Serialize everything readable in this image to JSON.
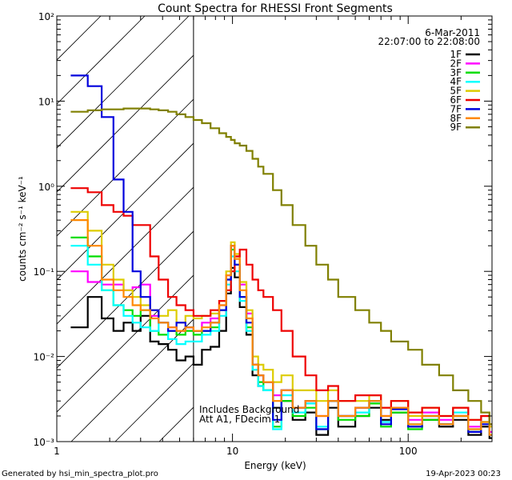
{
  "chart_data": {
    "type": "line",
    "title": "Count Spectra for RHESSI Front Segments",
    "xlabel": "Energy (keV)",
    "ylabel": "counts cm⁻² s⁻¹ keV⁻¹",
    "xscale": "log",
    "yscale": "log",
    "xlim": [
      1,
      300
    ],
    "ylim": [
      0.001,
      100
    ],
    "x_ticks": [
      "1",
      "10",
      "100"
    ],
    "y_ticks": [
      "10⁻³",
      "10⁻²",
      "10⁻¹",
      "10⁰",
      "10¹",
      "10²"
    ],
    "shaded_region": {
      "x_max_kev": 6,
      "style": "diagonal hatch"
    },
    "date": "6-Mar-2011",
    "time_range": "22:07:00 to 22:08:00",
    "annotation_lines": [
      "Includes Background",
      "Att A1, FDecim 1"
    ],
    "series": [
      {
        "name": "1F",
        "color": "#000000",
        "x": [
          1.2,
          1.5,
          1.8,
          2.1,
          2.4,
          2.7,
          3.0,
          3.4,
          3.8,
          4.3,
          4.8,
          5.4,
          6,
          6.7,
          7.5,
          8.4,
          9.2,
          9.8,
          10.3,
          11,
          12,
          13,
          14,
          15,
          17,
          19,
          22,
          26,
          30,
          35,
          40,
          50,
          60,
          70,
          80,
          100,
          120,
          150,
          180,
          220,
          260,
          290
        ],
        "values": [
          0.022,
          0.05,
          0.028,
          0.02,
          0.025,
          0.02,
          0.03,
          0.015,
          0.014,
          0.012,
          0.009,
          0.01,
          0.008,
          0.012,
          0.013,
          0.02,
          0.055,
          0.11,
          0.085,
          0.038,
          0.018,
          0.006,
          0.0045,
          0.004,
          0.0025,
          0.003,
          0.0018,
          0.0022,
          0.0012,
          0.0025,
          0.0015,
          0.002,
          0.0025,
          0.0018,
          0.0022,
          0.0015,
          0.0018,
          0.0015,
          0.0018,
          0.0012,
          0.0015,
          0.0011
        ]
      },
      {
        "name": "2F",
        "color": "#ff00ff",
        "x": [
          1.2,
          1.5,
          1.8,
          2.1,
          2.4,
          2.7,
          3.0,
          3.4,
          3.8,
          4.3,
          4.8,
          5.4,
          6,
          6.7,
          7.5,
          8.4,
          9.2,
          9.8,
          10.3,
          11,
          12,
          13,
          14,
          15,
          17,
          19,
          22,
          26,
          30,
          35,
          40,
          50,
          60,
          70,
          80,
          100,
          120,
          150,
          180,
          220,
          260,
          290
        ],
        "values": [
          0.1,
          0.075,
          0.07,
          0.07,
          0.06,
          0.065,
          0.07,
          0.03,
          0.025,
          0.022,
          0.02,
          0.022,
          0.02,
          0.025,
          0.028,
          0.04,
          0.09,
          0.2,
          0.15,
          0.07,
          0.032,
          0.008,
          0.006,
          0.005,
          0.0035,
          0.004,
          0.0025,
          0.003,
          0.002,
          0.003,
          0.002,
          0.0025,
          0.003,
          0.002,
          0.0025,
          0.0018,
          0.0022,
          0.0018,
          0.0025,
          0.0015,
          0.002,
          0.0013
        ]
      },
      {
        "name": "3F",
        "color": "#00dd00",
        "x": [
          1.2,
          1.5,
          1.8,
          2.1,
          2.4,
          2.7,
          3.0,
          3.4,
          3.8,
          4.3,
          4.8,
          5.4,
          6,
          6.7,
          7.5,
          8.4,
          9.2,
          9.8,
          10.3,
          11,
          12,
          13,
          14,
          15,
          17,
          19,
          22,
          26,
          30,
          35,
          40,
          50,
          60,
          70,
          80,
          100,
          120,
          150,
          180,
          220,
          260,
          290
        ],
        "values": [
          0.25,
          0.15,
          0.06,
          0.04,
          0.035,
          0.03,
          0.035,
          0.02,
          0.018,
          0.02,
          0.018,
          0.02,
          0.018,
          0.02,
          0.022,
          0.035,
          0.08,
          0.18,
          0.12,
          0.05,
          0.022,
          0.007,
          0.005,
          0.004,
          0.0015,
          0.003,
          0.002,
          0.0025,
          0.0014,
          0.003,
          0.0018,
          0.002,
          0.0028,
          0.0015,
          0.0022,
          0.0014,
          0.0018,
          0.0016,
          0.002,
          0.0013,
          0.0017,
          0.0012
        ]
      },
      {
        "name": "4F",
        "color": "#00ffff",
        "x": [
          1.2,
          1.5,
          1.8,
          2.1,
          2.4,
          2.7,
          3.0,
          3.4,
          3.8,
          4.3,
          4.8,
          5.4,
          6,
          6.7,
          7.5,
          8.4,
          9.2,
          9.8,
          10.3,
          11,
          12,
          13,
          14,
          15,
          17,
          19,
          22,
          26,
          30,
          35,
          40,
          50,
          60,
          70,
          80,
          100,
          120,
          150,
          180,
          220,
          260,
          290
        ],
        "values": [
          0.2,
          0.12,
          0.06,
          0.04,
          0.03,
          0.025,
          0.022,
          0.02,
          0.025,
          0.016,
          0.014,
          0.015,
          0.015,
          0.018,
          0.02,
          0.03,
          0.07,
          0.15,
          0.1,
          0.045,
          0.02,
          0.007,
          0.0045,
          0.004,
          0.0014,
          0.0035,
          0.0022,
          0.0028,
          0.0015,
          0.003,
          0.002,
          0.0022,
          0.003,
          0.0017,
          0.0024,
          0.0016,
          0.002,
          0.0016,
          0.0022,
          0.0014,
          0.0017,
          0.0012
        ]
      },
      {
        "name": "5F",
        "color": "#ddcc00",
        "x": [
          1.2,
          1.5,
          1.8,
          2.1,
          2.4,
          2.7,
          3.0,
          3.4,
          3.8,
          4.3,
          4.8,
          5.4,
          6,
          6.7,
          7.5,
          8.4,
          9.2,
          9.8,
          10.3,
          11,
          12,
          13,
          14,
          15,
          17,
          19,
          22,
          26,
          30,
          35,
          40,
          50,
          60,
          70,
          80,
          100,
          120,
          150,
          180,
          220,
          260,
          290
        ],
        "values": [
          0.5,
          0.3,
          0.12,
          0.08,
          0.06,
          0.05,
          0.04,
          0.035,
          0.03,
          0.035,
          0.025,
          0.03,
          0.028,
          0.03,
          0.032,
          0.045,
          0.1,
          0.22,
          0.16,
          0.075,
          0.035,
          0.01,
          0.008,
          0.007,
          0.005,
          0.006,
          0.004,
          0.004,
          0.003,
          0.004,
          0.003,
          0.003,
          0.0035,
          0.0025,
          0.003,
          0.002,
          0.0025,
          0.002,
          0.0025,
          0.0018,
          0.002,
          0.0015
        ]
      },
      {
        "name": "6F",
        "color": "#ee0000",
        "x": [
          1.2,
          1.5,
          1.8,
          2.1,
          2.4,
          2.7,
          3.0,
          3.4,
          3.8,
          4.3,
          4.8,
          5.4,
          6,
          6.7,
          7.5,
          8.4,
          9.2,
          9.8,
          10.3,
          11,
          12,
          13,
          14,
          15,
          17,
          19,
          22,
          26,
          30,
          35,
          40,
          50,
          60,
          70,
          80,
          100,
          120,
          150,
          180,
          220,
          260,
          290
        ],
        "values": [
          0.95,
          0.85,
          0.6,
          0.5,
          0.45,
          0.35,
          0.35,
          0.15,
          0.08,
          0.05,
          0.04,
          0.035,
          0.03,
          0.03,
          0.035,
          0.045,
          0.06,
          0.1,
          0.15,
          0.18,
          0.12,
          0.08,
          0.06,
          0.05,
          0.035,
          0.02,
          0.01,
          0.006,
          0.004,
          0.0045,
          0.003,
          0.0035,
          0.0035,
          0.0025,
          0.003,
          0.0022,
          0.0025,
          0.002,
          0.0025,
          0.0018,
          0.002,
          0.0016
        ]
      },
      {
        "name": "7F",
        "color": "#0000dd",
        "x": [
          1.2,
          1.5,
          1.8,
          2.1,
          2.4,
          2.7,
          3.0,
          3.4,
          3.8,
          4.3,
          4.8,
          5.4,
          6,
          6.7,
          7.5,
          8.4,
          9.2,
          9.8,
          10.3,
          11,
          12,
          13,
          14,
          15,
          17,
          19,
          22,
          26,
          30,
          35,
          40,
          50,
          60,
          70,
          80,
          100,
          120,
          150,
          180,
          220,
          260,
          290
        ],
        "values": [
          20,
          15,
          6.5,
          1.2,
          0.5,
          0.1,
          0.05,
          0.035,
          0.025,
          0.02,
          0.025,
          0.022,
          0.02,
          0.02,
          0.025,
          0.035,
          0.08,
          0.2,
          0.12,
          0.05,
          0.025,
          0.008,
          0.006,
          0.005,
          0.0018,
          0.004,
          0.0025,
          0.003,
          0.0014,
          0.003,
          0.002,
          0.0025,
          0.003,
          0.0016,
          0.0024,
          0.0015,
          0.002,
          0.0016,
          0.002,
          0.0013,
          0.0016,
          0.0012
        ]
      },
      {
        "name": "8F",
        "color": "#ff8800",
        "x": [
          1.2,
          1.5,
          1.8,
          2.1,
          2.4,
          2.7,
          3.0,
          3.4,
          3.8,
          4.3,
          4.8,
          5.4,
          6,
          6.7,
          7.5,
          8.4,
          9.2,
          9.8,
          10.3,
          11,
          12,
          13,
          14,
          15,
          17,
          19,
          22,
          26,
          30,
          35,
          40,
          50,
          60,
          70,
          80,
          100,
          120,
          150,
          180,
          220,
          260,
          290
        ],
        "values": [
          0.4,
          0.2,
          0.08,
          0.06,
          0.05,
          0.04,
          0.035,
          0.028,
          0.025,
          0.022,
          0.02,
          0.022,
          0.02,
          0.022,
          0.025,
          0.04,
          0.09,
          0.2,
          0.14,
          0.06,
          0.028,
          0.008,
          0.006,
          0.005,
          0.003,
          0.004,
          0.0025,
          0.003,
          0.002,
          0.003,
          0.002,
          0.0025,
          0.003,
          0.002,
          0.0025,
          0.0016,
          0.002,
          0.0016,
          0.002,
          0.0014,
          0.0017,
          0.0012
        ]
      },
      {
        "name": "9F",
        "color": "#808000",
        "x": [
          1.2,
          1.5,
          1.8,
          2.1,
          2.4,
          2.7,
          3.0,
          3.4,
          3.8,
          4.3,
          4.8,
          5.4,
          6,
          6.7,
          7.5,
          8.4,
          9.2,
          9.8,
          10.3,
          11,
          12,
          13,
          14,
          15,
          17,
          19,
          22,
          26,
          30,
          35,
          40,
          50,
          60,
          70,
          80,
          100,
          120,
          150,
          180,
          220,
          260,
          290
        ],
        "values": [
          7.5,
          7.8,
          8.0,
          8.0,
          8.2,
          8.2,
          8.2,
          8.0,
          7.8,
          7.5,
          7.0,
          6.5,
          6.0,
          5.5,
          4.8,
          4.2,
          3.8,
          3.5,
          3.2,
          3.0,
          2.6,
          2.1,
          1.7,
          1.4,
          0.9,
          0.6,
          0.35,
          0.2,
          0.12,
          0.08,
          0.05,
          0.035,
          0.025,
          0.02,
          0.015,
          0.012,
          0.008,
          0.006,
          0.004,
          0.003,
          0.0022,
          0.0016
        ]
      }
    ]
  },
  "footer": {
    "left": "Generated by hsi_min_spectra_plot.pro",
    "right": "19-Apr-2023 00:23"
  }
}
